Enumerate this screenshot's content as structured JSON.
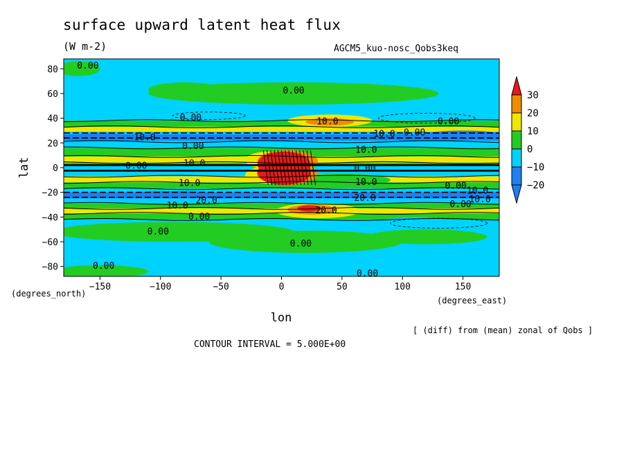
{
  "header": {
    "title": "surface upward latent heat flux",
    "subtitle": "(W m-2)",
    "model": "AGCM5_kuo-nosc_Qobs3keq"
  },
  "footer": {
    "contour_interval": "CONTOUR INTERVAL = 5.000E+00",
    "note": "[ (diff) from (mean) zonal of Qobs ]"
  },
  "colors": {
    "c_lt_m20": "#1e7ff0",
    "c_m20_m10": "#1e7ff0",
    "c_m10_0": "#00d2ff",
    "c_0_10": "#23cc23",
    "c_10_20": "#f0e600",
    "c_20_30": "#f08c00",
    "c_gt_30": "#e81a1a",
    "ocean_background": "#00d2ff"
  },
  "chart_data": {
    "type": "heatmap",
    "title": "surface upward latent heat flux",
    "subtitle": "(W m-2)",
    "xlabel": "lon",
    "ylabel": "lat",
    "x_unit_label": "(degrees_east)",
    "y_unit_label": "(degrees_north)",
    "xlim": [
      -180,
      180
    ],
    "ylim": [
      -88,
      88
    ],
    "x_ticks": [
      -150,
      -100,
      -50,
      0,
      50,
      100,
      150
    ],
    "y_ticks": [
      80,
      60,
      40,
      20,
      0,
      -20,
      -40,
      -60,
      -80
    ],
    "x_tick_labels": [
      "−150",
      "−100",
      "−50",
      "0",
      "50",
      "100",
      "150"
    ],
    "y_tick_labels": [
      "80",
      "60",
      "40",
      "20",
      "0",
      "−20",
      "−40",
      "−60",
      "−80"
    ],
    "contour_interval": 5,
    "colorbar": {
      "levels": [
        -20,
        -10,
        0,
        10,
        20,
        30
      ],
      "labels": [
        "−20",
        "−10",
        "0",
        "10",
        "20",
        "30"
      ]
    },
    "contour_labels": [
      {
        "text": "0.00",
        "lon": -160,
        "lat": 82
      },
      {
        "text": "0.00",
        "lon": 10,
        "lat": 62
      },
      {
        "text": "0.00",
        "lon": -75,
        "lat": 40
      },
      {
        "text": "10.0",
        "lon": 38,
        "lat": 37
      },
      {
        "text": "0.00",
        "lon": 138,
        "lat": 37
      },
      {
        "text": "10.0",
        "lon": 85,
        "lat": 27
      },
      {
        "text": "0.00",
        "lon": 110,
        "lat": 28
      },
      {
        "text": "10.0",
        "lon": -113,
        "lat": 24
      },
      {
        "text": "0.00",
        "lon": -73,
        "lat": 17
      },
      {
        "text": "10.0",
        "lon": 70,
        "lat": 14
      },
      {
        "text": "0.00",
        "lon": -120,
        "lat": 1
      },
      {
        "text": "10.0",
        "lon": -72,
        "lat": 3
      },
      {
        "text": "0.00",
        "lon": 69,
        "lat": -1
      },
      {
        "text": "10.0",
        "lon": -76,
        "lat": -13
      },
      {
        "text": "10.0",
        "lon": 70,
        "lat": -12
      },
      {
        "text": "0.00",
        "lon": 144,
        "lat": -15
      },
      {
        "text": "10.0",
        "lon": 162,
        "lat": -19
      },
      {
        "text": "20.0",
        "lon": 69,
        "lat": -25
      },
      {
        "text": "20.0",
        "lon": -62,
        "lat": -27
      },
      {
        "text": "10.0",
        "lon": -86,
        "lat": -31
      },
      {
        "text": "20.0",
        "lon": 37,
        "lat": -35
      },
      {
        "text": "0.00",
        "lon": -68,
        "lat": -40
      },
      {
        "text": "0.00",
        "lon": 148,
        "lat": -30
      },
      {
        "text": "10.0",
        "lon": 164,
        "lat": -26
      },
      {
        "text": "0.00",
        "lon": -102,
        "lat": -52
      },
      {
        "text": "0.00",
        "lon": 16,
        "lat": -62
      },
      {
        "text": "0.00",
        "lon": -147,
        "lat": -80
      },
      {
        "text": "0.00",
        "lon": 71,
        "lat": -86
      }
    ]
  }
}
